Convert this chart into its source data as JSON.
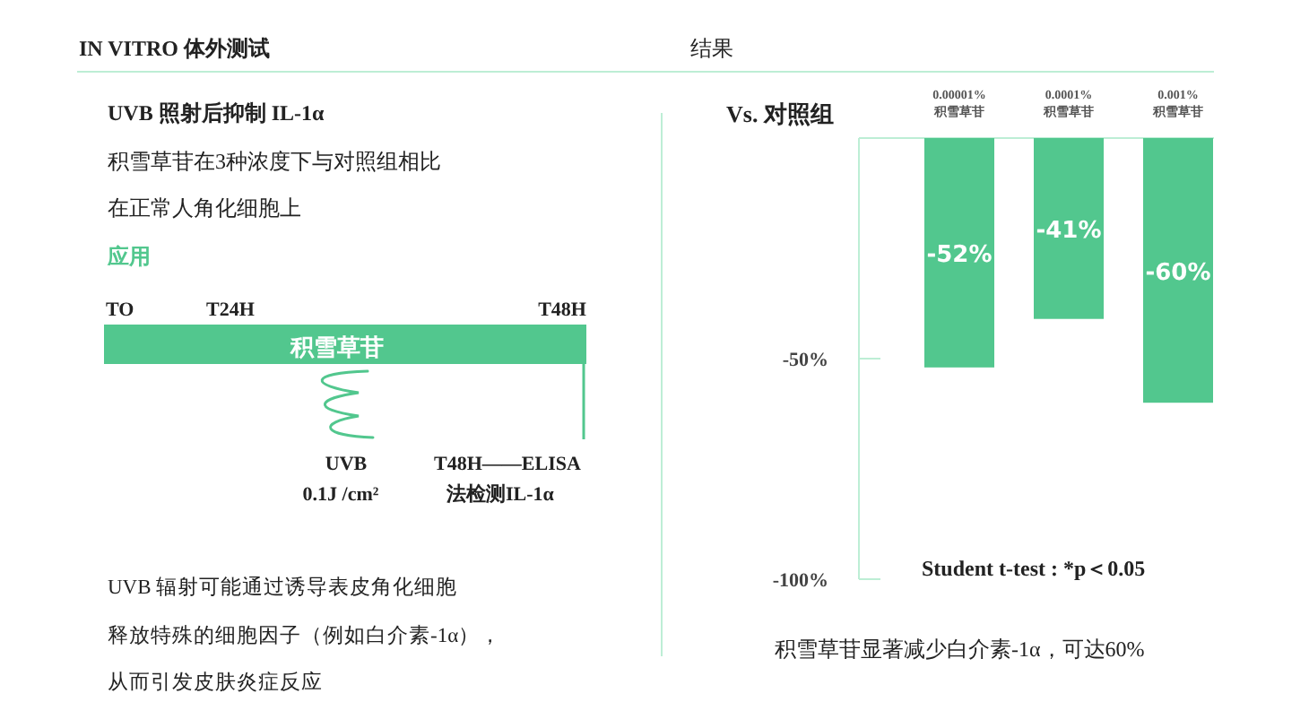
{
  "chart_data": [
    {
      "type": "other",
      "title": "IN VITRO 体外测试",
      "annotations": [
        "UVB 照射后抑制 IL-1α",
        "积雪草苷在3种浓度下与对照组相比",
        "在正常人角化细胞上",
        "应用",
        "TO",
        "T24H",
        "T48H",
        "积雪草苷",
        "UVB",
        "0.1J /cm²",
        "T48H——ELISA",
        "法检测IL-1α",
        "UVB 辐射可能通过诱导表皮角化细胞",
        "释放特殊的细胞因子（例如白介素-1α），",
        "从而引发皮肤炎症反应"
      ]
    },
    {
      "type": "bar",
      "title": "结果",
      "ylabel": "Vs. 对照组",
      "categories": [
        "0.00001%\n积雪草苷",
        "0.0001%\n积雪草苷",
        "0.001%\n积雪草苷"
      ],
      "series": [
        {
          "color": "#52c78e",
          "values": [
            -52,
            -41,
            -60
          ]
        }
      ],
      "value_labels": [
        "-52%",
        "-41%",
        "-60%"
      ],
      "ylim": [
        -100,
        0
      ],
      "yticks": [
        {
          "value": -50,
          "label": "-50%"
        },
        {
          "value": -100,
          "label": "-100%"
        }
      ],
      "annotations": [
        "Student t-test : *p＜0.05",
        "积雪草苷显著减少白介素-1α，可达60%"
      ]
    }
  ]
}
